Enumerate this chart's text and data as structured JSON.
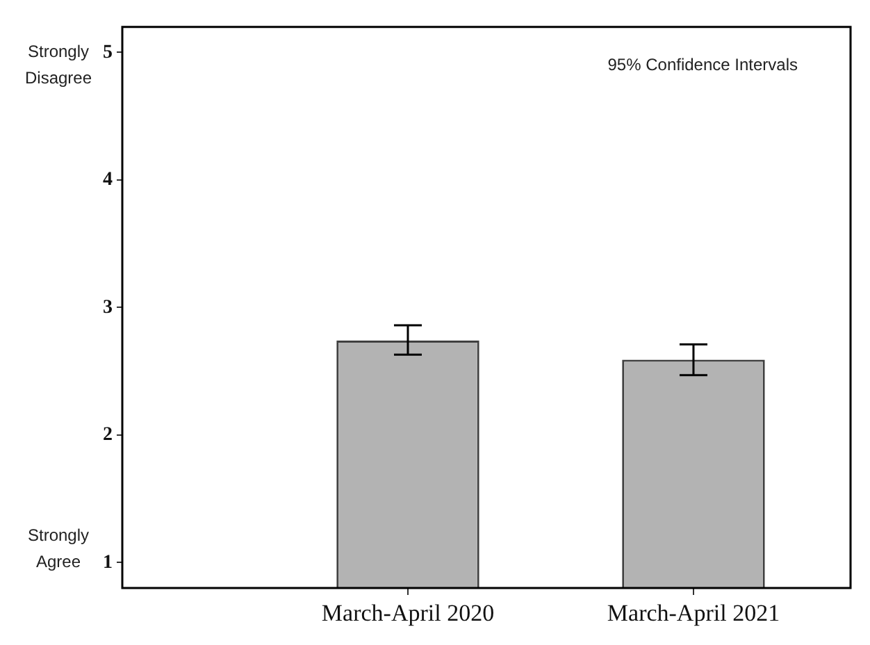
{
  "chart_data": {
    "type": "bar",
    "categories": [
      "March-April 2020",
      "March-April 2021"
    ],
    "values": [
      2.74,
      2.59
    ],
    "errors": [
      [
        2.63,
        2.86
      ],
      [
        2.47,
        2.71
      ]
    ],
    "color": "#b3b3b3",
    "ylim": [
      0.8,
      5.2
    ],
    "yticks": [
      1,
      2,
      3,
      4,
      5
    ],
    "grid": false,
    "legend": false,
    "annotations": [
      "Strongly Disagree",
      "Strongly Agree",
      "95% Confidence Intervals"
    ]
  }
}
